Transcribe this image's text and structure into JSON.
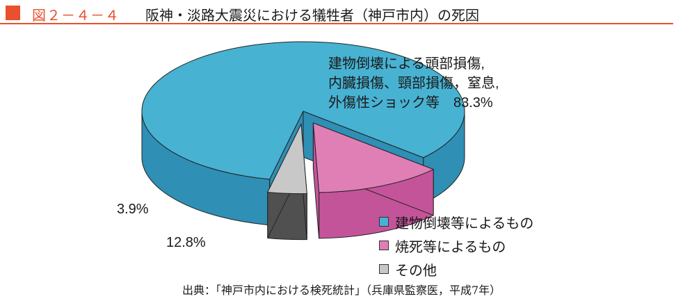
{
  "header": {
    "figure_number": "図２－４－４",
    "title": "阪神・淡路大震災における犠牲者（神戸市内）の死因",
    "accent_color": "#e8502e"
  },
  "chart_data": {
    "type": "pie",
    "style": "3d-exploded",
    "title": "",
    "slices": [
      {
        "label": "建物倒壊等によるもの",
        "value": 83.3,
        "value_label": "83.3%",
        "annotation_lines": [
          "建物倒壊による頭部損傷,",
          "内臓損傷、頸部損傷，窒息,",
          "外傷性ショック等"
        ],
        "top_color": "#48b2d2",
        "side_color": "#2f8fb5"
      },
      {
        "label": "焼死等によるもの",
        "value": 12.8,
        "value_label": "12.8%",
        "top_color": "#e07fb6",
        "side_color": "#c4549a"
      },
      {
        "label": "その他",
        "value": 3.9,
        "value_label": "3.9%",
        "top_color": "#c8c8c8",
        "side_color": "#505050"
      }
    ],
    "legend_position": "bottom-right"
  },
  "source": "出典：「神戸市内における検死統計」（兵庫県監察医，平成7年）"
}
